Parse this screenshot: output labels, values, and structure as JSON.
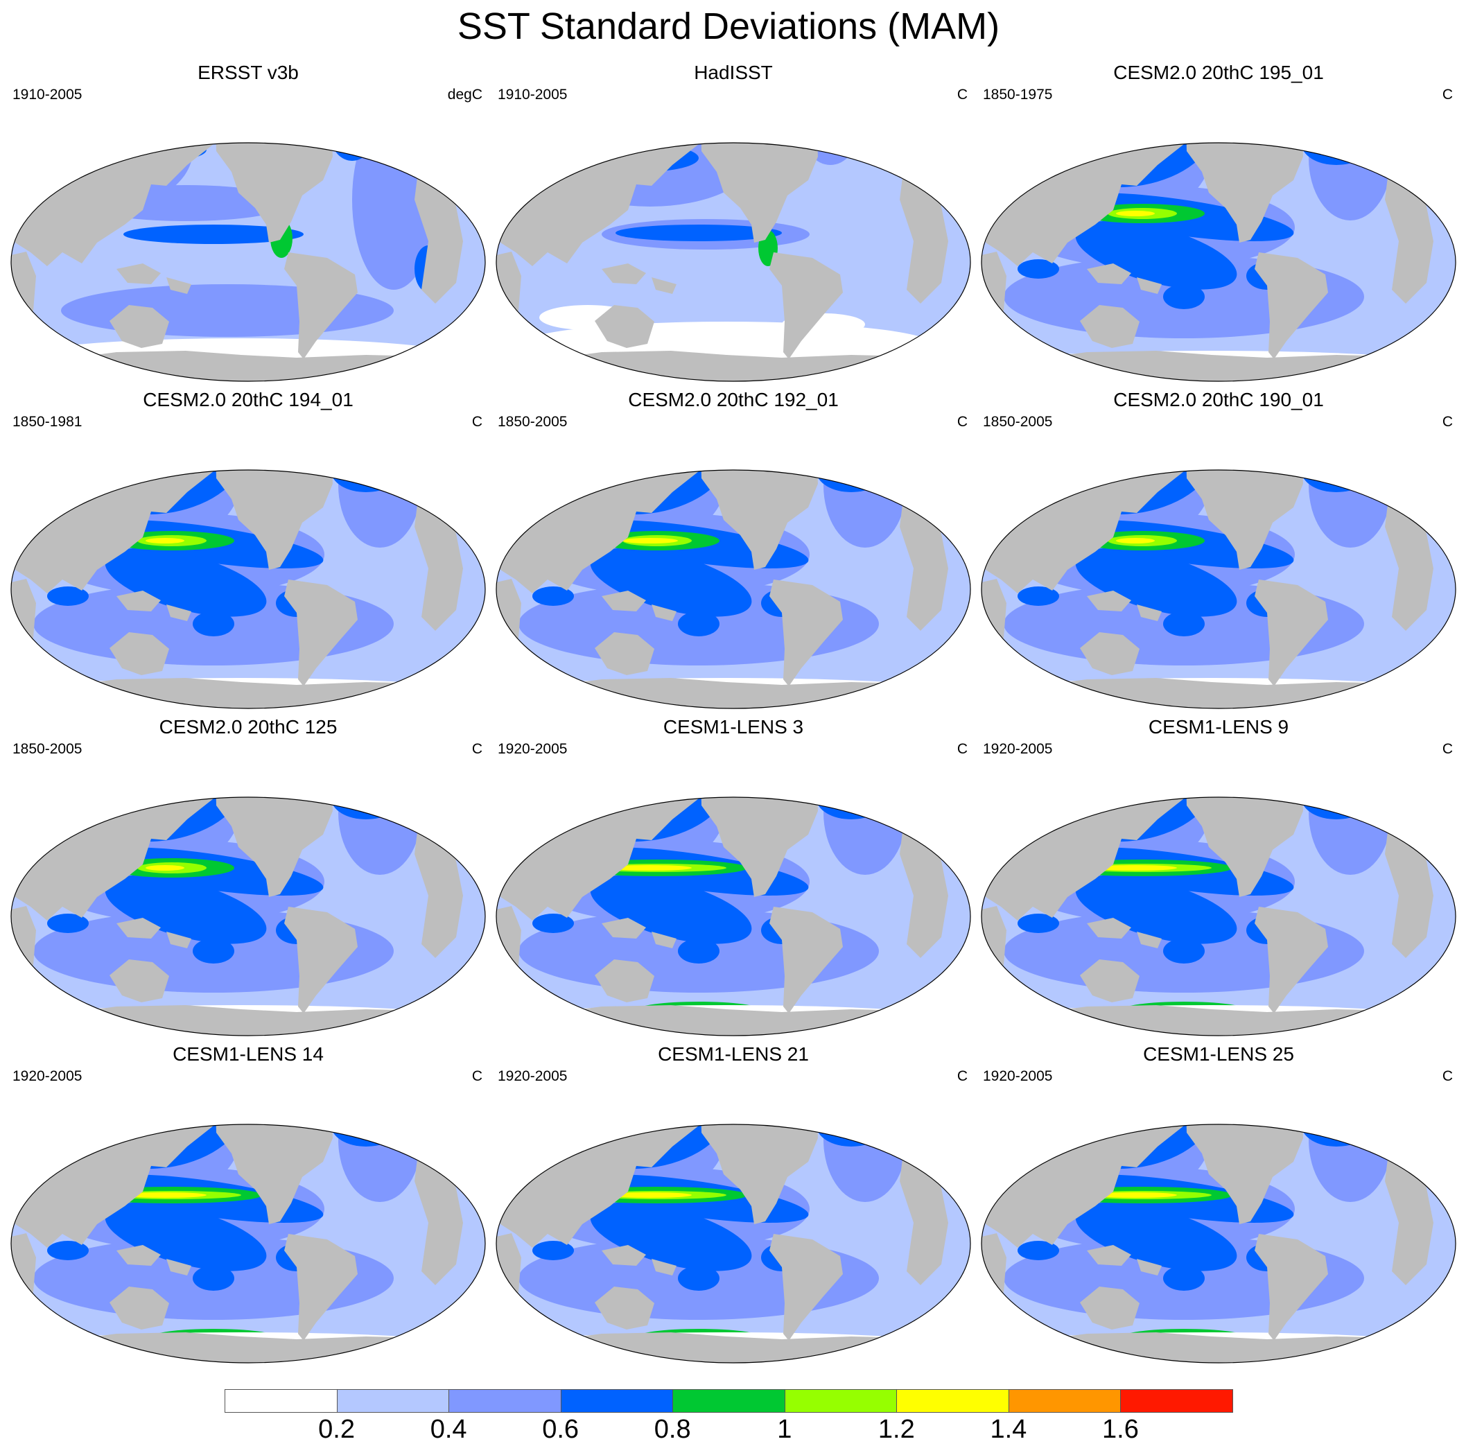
{
  "title": "SST Standard Deviations (MAM)",
  "panels": [
    {
      "title": "ERSST v3b",
      "period": "1910-2005",
      "units": "degC",
      "pattern": "obs1"
    },
    {
      "title": "HadISST",
      "period": "1910-2005",
      "units": "C",
      "pattern": "obs2"
    },
    {
      "title": "CESM2.0 20thC 195_01",
      "period": "1850-1975",
      "units": "C",
      "pattern": "cesm2"
    },
    {
      "title": "CESM2.0 20thC 194_01",
      "period": "1850-1981",
      "units": "C",
      "pattern": "cesm2"
    },
    {
      "title": "CESM2.0 20thC 192_01",
      "period": "1850-2005",
      "units": "C",
      "pattern": "cesm2b"
    },
    {
      "title": "CESM2.0 20thC 190_01",
      "period": "1850-2005",
      "units": "C",
      "pattern": "cesm2"
    },
    {
      "title": "CESM2.0 20thC 125",
      "period": "1850-2005",
      "units": "C",
      "pattern": "cesm2"
    },
    {
      "title": "CESM1-LENS 3",
      "period": "1920-2005",
      "units": "C",
      "pattern": "lens"
    },
    {
      "title": "CESM1-LENS 9",
      "period": "1920-2005",
      "units": "C",
      "pattern": "lens"
    },
    {
      "title": "CESM1-LENS 14",
      "period": "1920-2005",
      "units": "C",
      "pattern": "lens"
    },
    {
      "title": "CESM1-LENS 21",
      "period": "1920-2005",
      "units": "C",
      "pattern": "lens"
    },
    {
      "title": "CESM1-LENS 25",
      "period": "1920-2005",
      "units": "C",
      "pattern": "lens"
    }
  ],
  "colorbar": {
    "labels": [
      "0.2",
      "0.4",
      "0.6",
      "0.8",
      "1",
      "1.2",
      "1.4",
      "1.6"
    ],
    "colors": [
      "#ffffff",
      "#b4c8ff",
      "#8098ff",
      "#0062ff",
      "#00c832",
      "#96ff00",
      "#ffff00",
      "#ff9600",
      "#ff1900"
    ]
  },
  "land_color": "#bebebe",
  "ice_color": "#ffffff"
}
